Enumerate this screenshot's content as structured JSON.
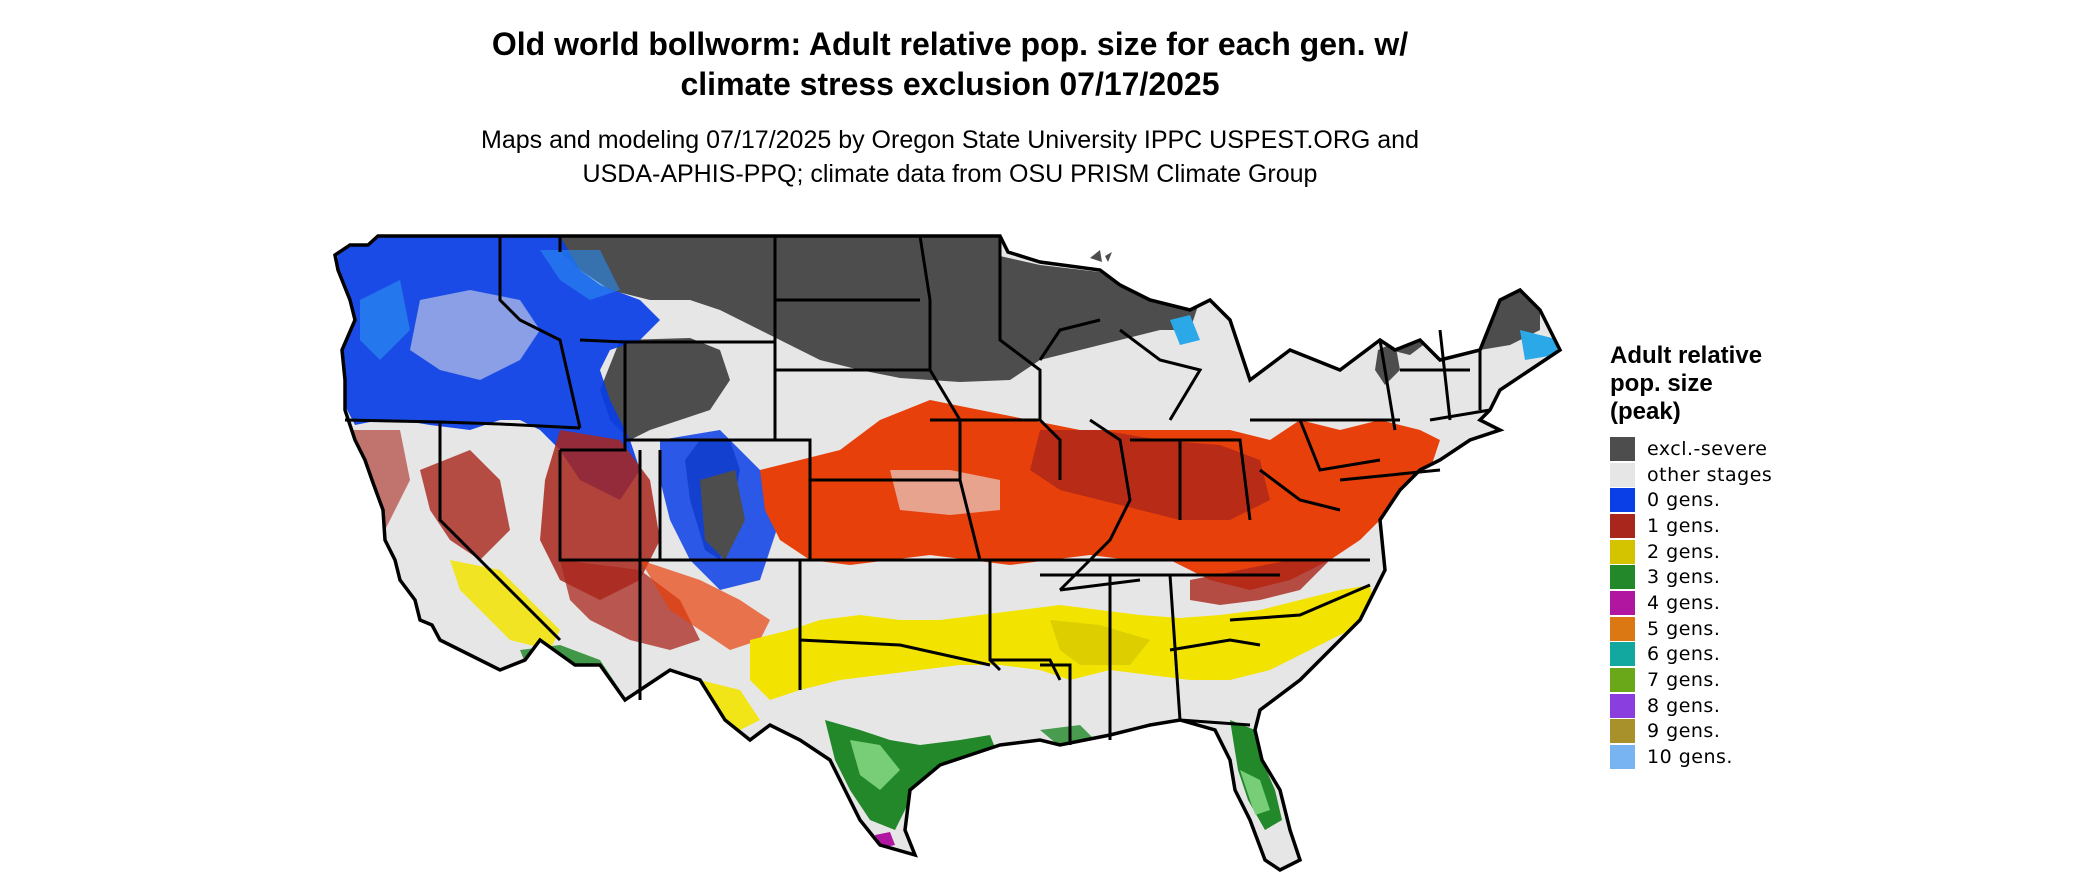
{
  "title": {
    "line1": "Old world bollworm: Adult relative pop. size for each gen. w/",
    "line2": "climate stress exclusion 07/17/2025"
  },
  "subtitle": {
    "line1": "Maps and modeling 07/17/2025 by Oregon State University IPPC USPEST.ORG and",
    "line2": "USDA-APHIS-PPQ; climate data from OSU PRISM Climate Group"
  },
  "legend": {
    "title_line1": "Adult relative",
    "title_line2": "pop. size",
    "title_line3": "(peak)",
    "items": [
      {
        "label": "excl.-severe",
        "color": "#4d4d4d"
      },
      {
        "label": "other stages",
        "color": "#e6e6e6"
      },
      {
        "label": "0 gens.",
        "color": "#0a3ee6"
      },
      {
        "label": "1 gens.",
        "color": "#a8261c"
      },
      {
        "label": "2 gens.",
        "color": "#d4c400"
      },
      {
        "label": "3 gens.",
        "color": "#22882a"
      },
      {
        "label": "4 gens.",
        "color": "#b0169f"
      },
      {
        "label": "5 gens.",
        "color": "#dc7814"
      },
      {
        "label": "6 gens.",
        "color": "#12a8a0"
      },
      {
        "label": "7 gens.",
        "color": "#6aa81a"
      },
      {
        "label": "8 gens.",
        "color": "#8a3ee0"
      },
      {
        "label": "9 gens.",
        "color": "#a8902a"
      },
      {
        "label": "10 gens.",
        "color": "#78b4f2"
      }
    ]
  },
  "map_colors": {
    "background": "#ffffff",
    "land_other": "#e6e6e6",
    "excl_severe": "#4d4d4d",
    "gen0": "#0a3ee6",
    "gen0_light": "#2a8af0",
    "gen1": "#a8261c",
    "gen1_orange": "#e8400a",
    "gen2": "#f2e400",
    "gen2_dark": "#d4c400",
    "gen3": "#22882a",
    "gen3_light": "#8ee08a",
    "gen4": "#b0169f",
    "border": "#000000"
  }
}
